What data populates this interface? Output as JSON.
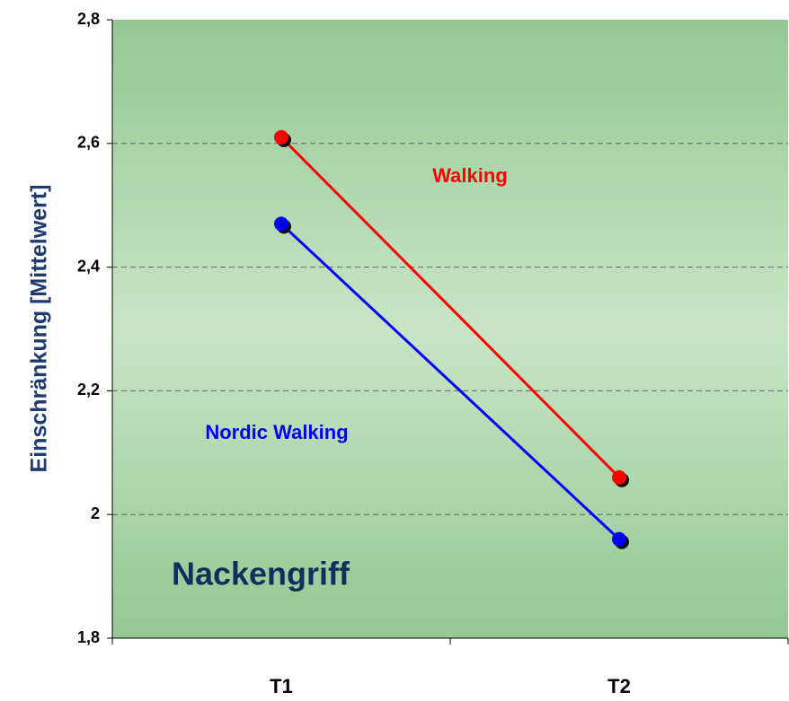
{
  "chart_data": {
    "type": "line",
    "y_label": "Einschränkung [Mittelwert]",
    "annotations": [
      "Walking",
      "Nordic Walking",
      "Nackengriff"
    ],
    "categories": [
      "T1",
      "T2"
    ],
    "series": [
      {
        "name": "Walking",
        "color": "#ff0000",
        "values": [
          2.61,
          2.06
        ]
      },
      {
        "name": "Nordic Walking",
        "color": "#0000ff",
        "values": [
          2.47,
          1.96
        ]
      }
    ],
    "ylim": [
      1.8,
      2.8
    ],
    "yticks": [
      {
        "value": 1.8,
        "label": "1,8"
      },
      2,
      {
        "value": 2.2,
        "label": "2,2"
      },
      {
        "value": 2.4,
        "label": "2,4"
      },
      {
        "value": 2.6,
        "label": "2,6"
      },
      {
        "value": 2.8,
        "label": "2,8"
      }
    ],
    "grid": true
  }
}
